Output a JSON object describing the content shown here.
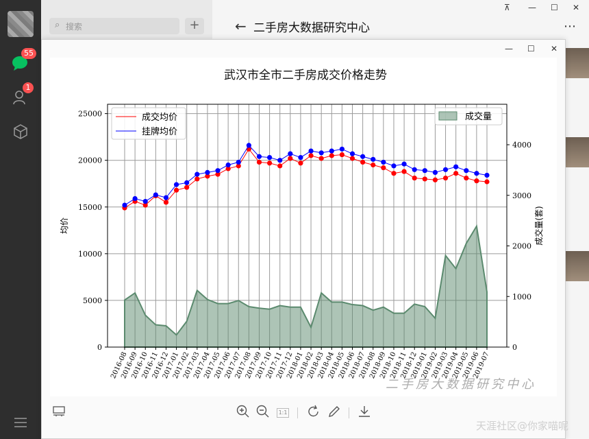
{
  "sidebar": {
    "chat_badge": "55",
    "contacts_badge": "1"
  },
  "list": {
    "search_placeholder": "搜索"
  },
  "chat": {
    "title": "二手房大数据研究中心"
  },
  "viewer": {
    "zoom_label": "1:1"
  },
  "watermark": "天涯社区@你家喵呢",
  "image_watermark": "二手房大数据研究中心",
  "chart_data": {
    "type": "line",
    "title": "武汉市全市二手房成交价格走势",
    "x_ticks": [
      "2016-08",
      "2016-09",
      "2016-10",
      "2016-11",
      "2016-12",
      "2017-01",
      "2017-02",
      "2017-03",
      "2017-04",
      "2017-05",
      "2017-06",
      "2017-07",
      "2017-08",
      "2017-09",
      "2017-10",
      "2017-11",
      "2017-12",
      "2018-01",
      "2018-02",
      "2018-03",
      "2018-04",
      "2018-05",
      "2018-06",
      "2018-07",
      "2018-08",
      "2018-09",
      "2018-10",
      "2018-11",
      "2018-12",
      "2019-01",
      "2019-02",
      "2019-03",
      "2019-04",
      "2019-05",
      "2019-06",
      "2019-07"
    ],
    "y_left_label": "均价",
    "y_right_label": "成交量(套)",
    "y_left_ticks": [
      "0",
      "5000",
      "10000",
      "15000",
      "20000",
      "25000"
    ],
    "y_right_ticks": [
      "0",
      "1000",
      "2000",
      "3000",
      "4000"
    ],
    "y_left_lim": [
      0,
      26000
    ],
    "y_right_lim": [
      0,
      4800
    ],
    "grid": true,
    "legend_left": "upper-left",
    "legend_right": "upper-right",
    "series": [
      {
        "name": "成交均价",
        "axis": "left",
        "color": "#ff0000",
        "values": [
          14900,
          15600,
          15200,
          16200,
          15500,
          16800,
          17100,
          18000,
          18300,
          18500,
          19100,
          19400,
          21200,
          19800,
          19700,
          19400,
          20200,
          19700,
          20500,
          20200,
          20500,
          20600,
          20200,
          19800,
          19500,
          19200,
          18600,
          18800,
          18100,
          18000,
          17900,
          18100,
          18600,
          18100,
          17800,
          17700
        ]
      },
      {
        "name": "挂牌均价",
        "axis": "left",
        "color": "#0000ff",
        "values": [
          15200,
          15900,
          15600,
          16300,
          16000,
          17400,
          17600,
          18500,
          18700,
          18900,
          19500,
          19800,
          21600,
          20400,
          20300,
          20000,
          20700,
          20300,
          21000,
          20800,
          21000,
          21200,
          20700,
          20400,
          20100,
          19800,
          19400,
          19600,
          19000,
          18900,
          18700,
          19000,
          19300,
          18900,
          18600,
          18400
        ]
      },
      {
        "name": "成交量",
        "axis": "right",
        "type": "area",
        "color": "#5b8a6e",
        "values": [
          930,
          1070,
          630,
          440,
          420,
          240,
          510,
          1120,
          940,
          860,
          860,
          920,
          800,
          770,
          750,
          820,
          790,
          790,
          390,
          1070,
          890,
          890,
          840,
          820,
          730,
          790,
          670,
          670,
          850,
          800,
          570,
          1810,
          1550,
          2050,
          2390,
          1090
        ]
      }
    ]
  }
}
